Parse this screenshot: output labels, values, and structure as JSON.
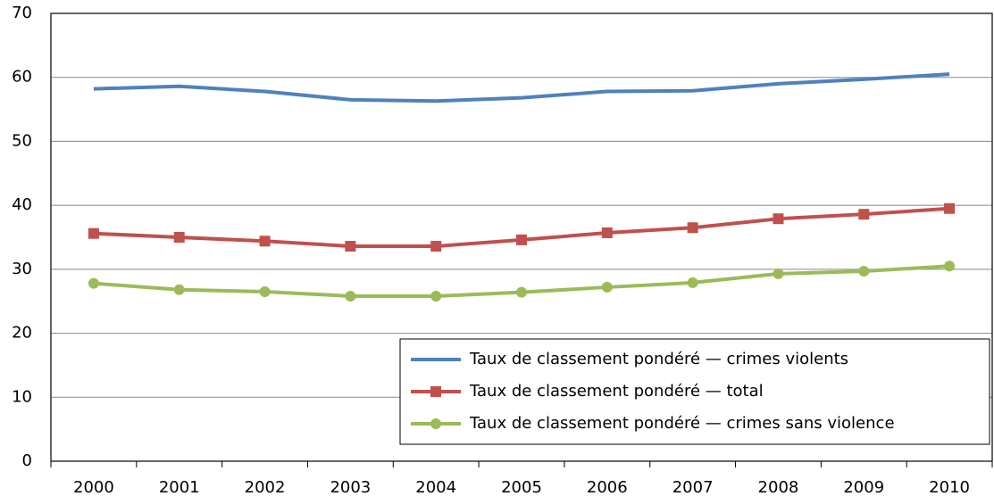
{
  "chart_data": {
    "type": "line",
    "categories": [
      "2000",
      "2001",
      "2002",
      "2003",
      "2004",
      "2005",
      "2006",
      "2007",
      "2008",
      "2009",
      "2010"
    ],
    "series": [
      {
        "name": "Taux de classement pondéré — crimes violents",
        "color": "#4f81bd",
        "marker": "none",
        "values": [
          58.2,
          58.6,
          57.8,
          56.5,
          56.3,
          56.8,
          57.8,
          57.9,
          59.0,
          59.7,
          60.5
        ]
      },
      {
        "name": "Taux de classement pondéré — total",
        "color": "#c0504d",
        "marker": "square",
        "values": [
          35.6,
          35.0,
          34.4,
          33.6,
          33.6,
          34.6,
          35.7,
          36.5,
          37.9,
          38.6,
          39.5
        ]
      },
      {
        "name": "Taux de classement pondéré — crimes sans violence",
        "color": "#9bbb59",
        "marker": "circle",
        "values": [
          27.8,
          26.8,
          26.5,
          25.8,
          25.8,
          26.4,
          27.2,
          27.9,
          29.3,
          29.7,
          30.5
        ]
      }
    ],
    "ylim": [
      0,
      70
    ],
    "yticks": [
      0,
      10,
      20,
      30,
      40,
      50,
      60,
      70
    ],
    "grid": true,
    "legend": "lower-right"
  }
}
